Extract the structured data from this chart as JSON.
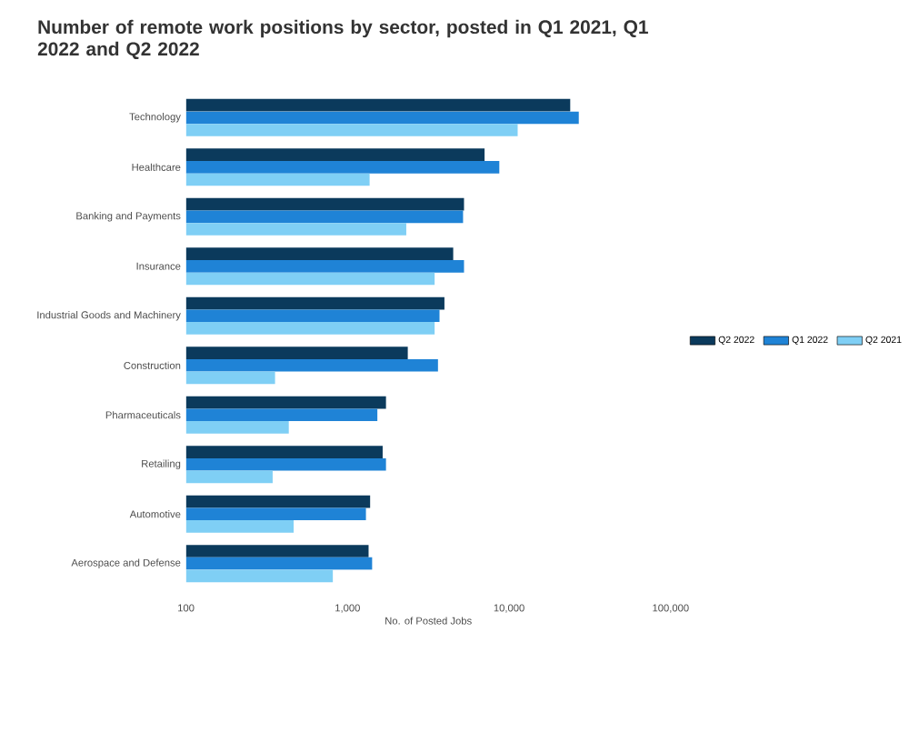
{
  "chart_data": {
    "type": "bar",
    "orientation": "horizontal",
    "title": "Number of remote work positions by sector, posted in Q1 2021, Q1 2022 and Q2 2022",
    "xlabel": "No. of Posted Jobs",
    "log": "x",
    "xlim": [
      100,
      100000
    ],
    "xticks": [
      100,
      {
        "value": 1000,
        "label": "1,000"
      },
      {
        "value": 10000,
        "label": "10,000"
      },
      {
        "value": 100000,
        "label": "100,000"
      }
    ],
    "categories": [
      "Technology",
      "Healthcare",
      "Banking and Payments",
      "Insurance",
      "Industrial Goods and Machinery",
      "Construction",
      "Pharmaceuticals",
      "Retailing",
      "Automotive",
      "Aerospace and Defense"
    ],
    "series": [
      {
        "name": "Q2 2022",
        "color": "#0b3a5c",
        "values": [
          23900,
          7050,
          5260,
          4510,
          3980,
          2360,
          1730,
          1650,
          1380,
          1350
        ]
      },
      {
        "name": "Q1 2022",
        "color": "#1f83d6",
        "values": [
          27000,
          8700,
          5190,
          5260,
          3710,
          3630,
          1530,
          1730,
          1300,
          1420
        ]
      },
      {
        "name": "Q2 2021",
        "color": "#7fcff5",
        "values": [
          11300,
          1370,
          2310,
          3460,
          3460,
          356,
          433,
          344,
          464,
          811
        ]
      }
    ],
    "legend": "right",
    "grid": false
  }
}
